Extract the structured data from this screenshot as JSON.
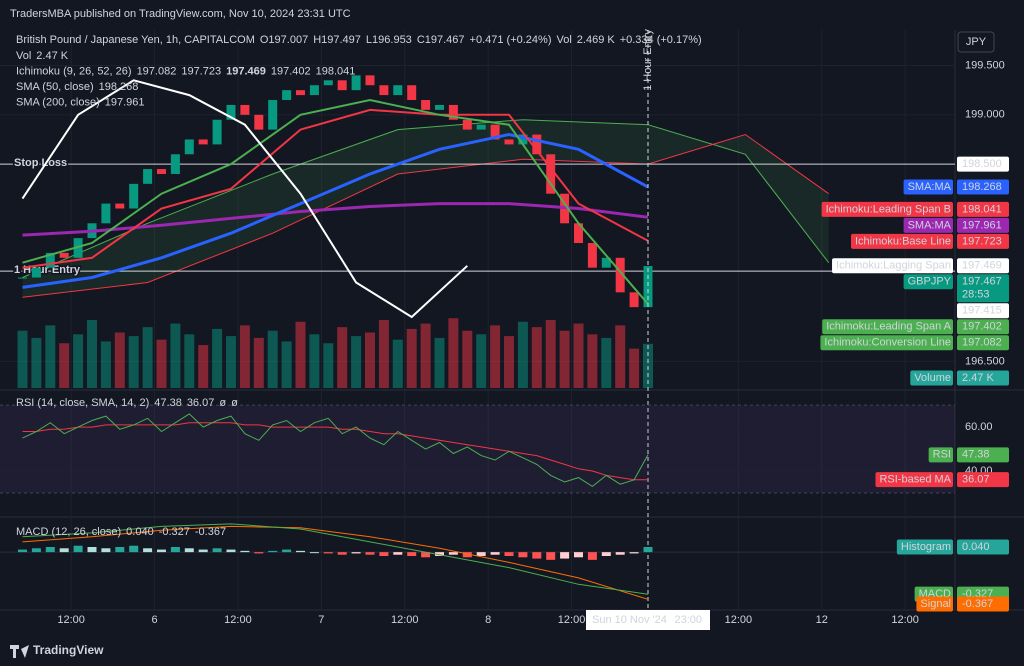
{
  "header": {
    "publisher": "TradersMBA published on TradingView.com, Nov 10, 2024 23:31 UTC",
    "footer": "TradingView"
  },
  "chart_data": {
    "type": "candlestick",
    "symbol": "British Pound / Japanese Yen, 1h, CAPITALCOM",
    "ohlc_legend": [
      "O197.007",
      "H197.497",
      "L196.953",
      "C197.467",
      "+0.471 (+0.24%)",
      "Vol",
      "2.469 K",
      "+0.334 (+0.17%)"
    ],
    "indicator_legends": [
      {
        "name": "Vol",
        "values": [
          "2.47 K"
        ],
        "colors": [
          "#26a69a"
        ]
      },
      {
        "name": "Ichimoku (9, 26, 52, 26)",
        "values": [
          "197.082",
          "197.723",
          "197.469",
          "197.402",
          "198.041"
        ],
        "colors": [
          "#4caf50",
          "#f23645",
          "#ffffff",
          "#4caf50",
          "#f23645"
        ]
      },
      {
        "name": "SMA (50, close)",
        "values": [
          "198.268"
        ],
        "colors": [
          "#2962ff"
        ]
      },
      {
        "name": "SMA (200, close)",
        "values": [
          "197.961"
        ],
        "colors": [
          "#9c27b0"
        ]
      }
    ],
    "currency": "JPY",
    "ylim": [
      196.23,
      199.86
    ],
    "yticks": [
      {
        "value": 199.5,
        "label": "199.500"
      },
      {
        "value": 199,
        "label": "199.000"
      },
      {
        "value": 196.5,
        "label": "196.500"
      }
    ],
    "up_color": "#089981",
    "down_color": "#f23645",
    "closes": [
      197.35,
      197.45,
      197.6,
      197.55,
      197.75,
      197.9,
      198.1,
      198.05,
      198.3,
      198.45,
      198.4,
      198.6,
      198.75,
      198.7,
      198.95,
      199.1,
      199.0,
      198.85,
      199.15,
      199.25,
      199.2,
      199.3,
      199.35,
      199.25,
      199.4,
      199.3,
      199.2,
      199.3,
      199.15,
      199.05,
      199.1,
      198.95,
      198.85,
      198.9,
      198.75,
      198.7,
      198.8,
      198.6,
      198.2,
      197.9,
      197.7,
      197.45,
      197.55,
      197.2,
      197.05,
      197.467
    ],
    "volume_lim": [
      0,
      20
    ],
    "volumes": [
      3.2,
      2.8,
      3.5,
      2.5,
      3.0,
      3.8,
      2.6,
      3.1,
      2.9,
      3.4,
      2.7,
      3.6,
      3.0,
      2.4,
      3.3,
      2.9,
      3.5,
      2.8,
      3.2,
      2.6,
      3.7,
      3.0,
      2.5,
      3.4,
      2.9,
      3.1,
      3.8,
      2.7,
      3.3,
      3.6,
      2.8,
      3.9,
      3.2,
      3.0,
      3.5,
      2.9,
      3.7,
      3.4,
      3.8,
      3.2,
      3.6,
      3.0,
      2.8,
      3.5,
      2.2,
      2.47
    ],
    "line_x": [
      0,
      5,
      10,
      15,
      20,
      25,
      30,
      35,
      40,
      45
    ],
    "sma50": {
      "color": "#2962ff",
      "values": [
        197.25,
        197.35,
        197.55,
        197.8,
        198.1,
        198.4,
        198.65,
        198.8,
        198.65,
        198.268
      ]
    },
    "sma200": {
      "color": "#9c27b0",
      "values": [
        197.78,
        197.82,
        197.88,
        197.95,
        198.02,
        198.07,
        198.1,
        198.1,
        198.05,
        197.961
      ]
    },
    "base_line": {
      "color": "#f23645",
      "values": [
        197.45,
        197.55,
        198.05,
        198.25,
        198.85,
        199.05,
        199.0,
        199.0,
        198.1,
        197.723
      ]
    },
    "conversion_line": {
      "color": "#4caf50",
      "values": [
        197.5,
        197.7,
        198.2,
        198.5,
        199.0,
        199.15,
        199.0,
        198.9,
        197.9,
        197.082
      ]
    },
    "lagging_x": [
      0,
      4,
      8,
      12,
      16,
      20,
      24,
      28,
      32
    ],
    "lagging_span": {
      "color": "#ffffff",
      "values": [
        198.15,
        199.0,
        199.35,
        199.2,
        198.9,
        198.2,
        197.3,
        196.95,
        197.469
      ]
    },
    "span_x": [
      0,
      9,
      18,
      27,
      36,
      45,
      52,
      58
    ],
    "span_a": {
      "color": "#4caf50",
      "values": [
        197.35,
        197.9,
        198.4,
        198.85,
        198.95,
        198.9,
        198.6,
        197.5
      ]
    },
    "span_b": {
      "color": "#f23645",
      "values": [
        197.15,
        197.3,
        197.8,
        198.4,
        198.55,
        198.5,
        198.8,
        198.2
      ]
    },
    "annotations": [
      {
        "text": "Stop Loss",
        "value": 198.5
      },
      {
        "text": "1 Hour Entry",
        "value": 197.415
      }
    ],
    "vertical_annotation": {
      "text": "1 Hour Entry",
      "x": 45
    },
    "price_tags": [
      {
        "label": "198.500",
        "value": 198.5,
        "color": "#ffffff"
      },
      {
        "name": "SMA:MA",
        "label": "198.268",
        "value": 198.268,
        "color": "#2962ff"
      },
      {
        "name": "Ichimoku:Leading Span B",
        "label": "198.041",
        "value": 198.041,
        "color": "#f23645"
      },
      {
        "name": "SMA:MA",
        "label": "197.961",
        "value": 197.961,
        "color": "#9c27b0"
      },
      {
        "name": "Ichimoku:Base Line",
        "label": "197.723",
        "value": 197.723,
        "color": "#f23645"
      },
      {
        "name": "Ichimoku:Lagging Span",
        "label": "197.469",
        "value": 197.469,
        "color": "#ffffff"
      },
      {
        "name": "GBPJPY",
        "label": "197.467",
        "sub": "28:53",
        "value": 197.467,
        "color": "#089981"
      },
      {
        "label": "197.415",
        "value": 197.415,
        "color": "#ffffff"
      },
      {
        "name": "Ichimoku:Leading Span A",
        "label": "197.402",
        "value": 197.402,
        "color": "#4caf50"
      },
      {
        "name": "Ichimoku:Conversion Line",
        "label": "197.082",
        "value": 197.082,
        "color": "#4caf50"
      }
    ],
    "volume_tag": {
      "name": "Volume",
      "label": "2.47 K",
      "color": "#26a69a"
    },
    "xticks": [
      {
        "value": 3.5,
        "label": "12:00"
      },
      {
        "value": 9.5,
        "label": "6"
      },
      {
        "value": 15.5,
        "label": "12:00"
      },
      {
        "value": 21.5,
        "label": "7"
      },
      {
        "value": 27.5,
        "label": "12:00"
      },
      {
        "value": 33.5,
        "label": "8"
      },
      {
        "value": 39.5,
        "label": "12:00"
      },
      {
        "value": 51.5,
        "label": "12:00"
      },
      {
        "value": 57.5,
        "label": "12"
      },
      {
        "value": 63.5,
        "label": "12:00"
      }
    ],
    "cursor": {
      "value": 45,
      "label": "Sun 10 Nov '24",
      "time": "23:00"
    }
  },
  "rsi": {
    "title": "RSI (14, close, SMA, 14, 2)",
    "legend_values": [
      "47.38",
      "36.07",
      "ø",
      "ø"
    ],
    "legend_colors": [
      "#7e57c2",
      "#f23645",
      "#9598a1",
      "#9598a1"
    ],
    "ylim": [
      20,
      75.5
    ],
    "yticks": [
      {
        "value": 60,
        "label": "60.00"
      },
      {
        "value": 40,
        "label": "40.00"
      }
    ],
    "band": [
      30,
      70
    ],
    "rsi": {
      "color": "#4caf50",
      "values": [
        55,
        58,
        62,
        57,
        60,
        63,
        65,
        59,
        61,
        64,
        58,
        62,
        66,
        60,
        63,
        65,
        57,
        54,
        61,
        63,
        58,
        62,
        64,
        57,
        60,
        55,
        52,
        58,
        54,
        50,
        53,
        48,
        51,
        47,
        45,
        49,
        46,
        43,
        38,
        35,
        37,
        33,
        38,
        34,
        36,
        47.38
      ]
    },
    "ma": {
      "color": "#f23645",
      "values": [
        58,
        58,
        59,
        59,
        60,
        60,
        61,
        61,
        61,
        61,
        61,
        61,
        62,
        62,
        62,
        62,
        61,
        61,
        60,
        60,
        60,
        60,
        60,
        59,
        59,
        58,
        57,
        57,
        56,
        55,
        54,
        53,
        52,
        51,
        50,
        49,
        48,
        47,
        45,
        43,
        41,
        40,
        38,
        37,
        36,
        36.07
      ]
    },
    "tags": [
      {
        "name": "RSI",
        "label": "47.38",
        "value": 47.38,
        "color": "#4caf50"
      },
      {
        "name": "RSI-based MA",
        "label": "36.07",
        "value": 36.07,
        "color": "#f23645"
      }
    ]
  },
  "macd": {
    "title": "MACD (12, 26, close)",
    "legend_values": [
      "0.040",
      "-0.327",
      "-0.367"
    ],
    "legend_colors": [
      "#26a69a",
      "#4caf50",
      "#ff6d00"
    ],
    "ylim": [
      -0.45,
      0.25
    ],
    "histogram": [
      0.02,
      0.03,
      0.04,
      0.03,
      0.05,
      0.04,
      0.03,
      0.04,
      0.05,
      0.03,
      0.02,
      0.04,
      0.03,
      0.02,
      0.03,
      0.02,
      0.01,
      -0.01,
      0.01,
      0.02,
      0.01,
      0,
      -0.01,
      -0.02,
      -0.01,
      -0.02,
      -0.03,
      -0.02,
      -0.03,
      -0.04,
      -0.03,
      -0.02,
      -0.04,
      -0.03,
      -0.02,
      -0.03,
      -0.04,
      -0.05,
      -0.06,
      -0.05,
      -0.04,
      -0.06,
      -0.03,
      -0.02,
      -0.01,
      0.04
    ],
    "macd": {
      "color": "#4caf50",
      "values": [
        0.12,
        0.15,
        0.2,
        0.22,
        0.18,
        0.08,
        -0.02,
        -0.12,
        -0.25,
        -0.327
      ]
    },
    "signal": {
      "color": "#ff6d00",
      "values": [
        0.08,
        0.12,
        0.17,
        0.2,
        0.19,
        0.12,
        0.03,
        -0.08,
        -0.2,
        -0.367
      ]
    },
    "tags": [
      {
        "name": "Histogram",
        "label": "0.040",
        "value": 0.04,
        "color": "#26a69a"
      },
      {
        "name": "MACD",
        "label": "-0.327",
        "value": -0.327,
        "color": "#4caf50"
      },
      {
        "name": "Signal",
        "label": "-0.367",
        "value": -0.367,
        "color": "#ff6d00"
      }
    ]
  }
}
